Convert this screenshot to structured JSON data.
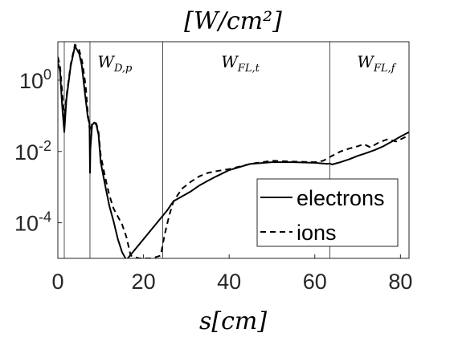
{
  "chart_data": {
    "type": "line",
    "title": "[W/cm²]",
    "xlabel": "s[cm]",
    "ylabel": "",
    "xlim": [
      0,
      82
    ],
    "ylim": [
      1e-05,
      12
    ],
    "yscale": "log",
    "grid": false,
    "legend_position": "bottom-right",
    "xticks": [
      0,
      20,
      40,
      60,
      80
    ],
    "xtick_labels": [
      "0",
      "20",
      "40",
      "60",
      "80"
    ],
    "yticks": [
      0.0001,
      0.01,
      1
    ],
    "ytick_labels": [
      {
        "base": "10",
        "exp": "-4"
      },
      {
        "base": "10",
        "exp": "-2"
      },
      {
        "base": "10",
        "exp": "0"
      }
    ],
    "vlines": [
      1.5,
      7.5,
      24.5,
      63.5
    ],
    "regions": [
      {
        "label_main": "W",
        "label_sub": "D,p",
        "x": 13.3
      },
      {
        "label_main": "W",
        "label_sub": "FL,t",
        "x": 42.6
      },
      {
        "label_main": "W",
        "label_sub": "FL,f",
        "x": 74.3
      }
    ],
    "series": [
      {
        "name": "electrons",
        "style": "solid",
        "x": [
          0,
          0.5,
          1,
          1.5,
          2,
          3,
          4,
          5,
          5.6,
          6.3,
          7,
          7.4,
          7.5,
          7.6,
          8,
          8.5,
          9,
          9.5,
          10,
          11,
          12,
          13,
          14,
          15,
          16,
          25.5,
          26,
          27,
          29,
          31,
          33,
          35,
          37,
          40,
          45,
          50,
          55,
          60,
          63,
          63.5,
          64,
          66,
          68,
          70,
          72,
          74,
          76,
          78,
          80,
          82
        ],
        "y": [
          3.2,
          1.8,
          0.2,
          0.035,
          0.3,
          2.5,
          9,
          5.5,
          2.6,
          0.45,
          0.09,
          0.06,
          0.0025,
          0.012,
          0.055,
          0.065,
          0.055,
          0.03,
          0.005,
          0.0012,
          0.0003,
          0.00011,
          3.5e-05,
          1.5e-05,
          9e-06,
          0.00022,
          0.00027,
          0.0004,
          0.00055,
          0.00075,
          0.0011,
          0.0015,
          0.002,
          0.003,
          0.0045,
          0.005,
          0.005,
          0.0048,
          0.0045,
          0.0046,
          0.0043,
          0.005,
          0.006,
          0.0075,
          0.009,
          0.011,
          0.014,
          0.019,
          0.026,
          0.035
        ]
      },
      {
        "name": "ions",
        "style": "dashed",
        "x": [
          0,
          0.5,
          1,
          1.5,
          2,
          3,
          4,
          5,
          5.7,
          6.5,
          7,
          7.5,
          8,
          8.5,
          9,
          9.5,
          10,
          11,
          12,
          13,
          14,
          15,
          16,
          17,
          19,
          22,
          24,
          25,
          26,
          27,
          29,
          31,
          33,
          35,
          37,
          40,
          45,
          50,
          55,
          60,
          62,
          64,
          66,
          68,
          70,
          71.5,
          73,
          75,
          77,
          79,
          81,
          82
        ],
        "y": [
          4.5,
          2.5,
          0.5,
          0.08,
          0.35,
          2.8,
          10,
          7,
          3.2,
          0.7,
          0.12,
          0.035,
          0.06,
          0.068,
          0.06,
          0.035,
          0.008,
          0.002,
          0.0006,
          0.00025,
          0.00015,
          9e-05,
          4e-05,
          1.2e-05,
          1e-05,
          1e-05,
          1.2e-05,
          5e-05,
          0.00016,
          0.0004,
          0.0009,
          0.0014,
          0.002,
          0.0025,
          0.0028,
          0.0032,
          0.0045,
          0.0055,
          0.0052,
          0.005,
          0.0055,
          0.0075,
          0.01,
          0.012,
          0.014,
          0.016,
          0.013,
          0.018,
          0.022,
          0.019,
          0.025,
          0.03
        ]
      }
    ]
  }
}
